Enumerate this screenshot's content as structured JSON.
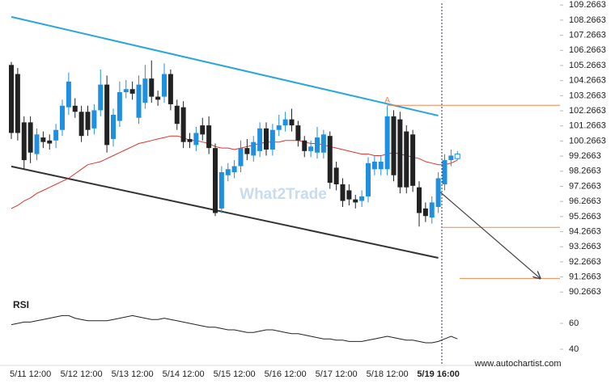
{
  "chart_data": {
    "type": "candlestick",
    "categories": [
      null,
      null,
      null,
      "5/11 12:00",
      null,
      null,
      null,
      null,
      null,
      null,
      null,
      "5/12 12:00",
      null,
      null,
      null,
      null,
      null,
      null,
      null,
      "5/13 12:00",
      null,
      null,
      null,
      null,
      null,
      null,
      null,
      "5/14 12:00",
      null,
      null,
      null,
      null,
      null,
      null,
      null,
      "5/15 12:00",
      null,
      null,
      null,
      null,
      null,
      null,
      null,
      "5/16 12:00",
      null,
      null,
      null,
      null,
      null,
      null,
      null,
      "5/17 12:00",
      null,
      null,
      null,
      null,
      null,
      null,
      null,
      "5/18 12:00",
      null,
      null,
      null,
      null,
      null,
      null,
      null,
      "5/19 16:00",
      null,
      null,
      null
    ],
    "open": [
      105.3,
      104.7,
      101.5,
      101.5,
      99.4,
      100.5,
      100.3,
      100.3,
      101.0,
      102.5,
      102.6,
      102.2,
      102.2,
      101.1,
      102.3,
      104.0,
      100.4,
      101.6,
      103.5,
      103.7,
      101.8,
      102.8,
      104.4,
      103.2,
      103.2,
      104.7,
      102.6,
      102.5,
      100.4,
      100.0,
      101.3,
      101.3,
      99.8,
      95.8,
      98.0,
      98.2,
      98.6,
      99.8,
      99.3,
      99.6,
      101.1,
      99.7,
      101.0,
      101.3,
      101.7,
      101.3,
      100.3,
      99.6,
      99.5,
      99.5,
      100.6,
      98.5,
      97.4,
      97.0,
      96.4,
      96.3,
      96.6,
      98.4,
      98.4,
      98.4,
      101.9,
      101.7,
      100.9,
      100.7,
      97.2,
      95.8,
      95.2,
      95.9,
      97.4,
      99.0,
      99.1
    ],
    "high": [
      105.5,
      105.1,
      101.9,
      101.9,
      101.1,
      100.9,
      100.7,
      101.4,
      103.0,
      104.8,
      103.1,
      102.6,
      102.6,
      102.7,
      105.0,
      104.6,
      102.4,
      104.2,
      104.3,
      104.2,
      104.6,
      105.3,
      105.6,
      103.6,
      105.4,
      105.0,
      103.0,
      102.9,
      100.8,
      101.2,
      101.8,
      101.9,
      100.1,
      98.6,
      98.8,
      99.0,
      100.3,
      100.4,
      100.6,
      101.5,
      101.5,
      101.4,
      102.0,
      102.2,
      102.4,
      101.6,
      100.6,
      100.3,
      101.2,
      101.0,
      100.9,
      98.9,
      97.8,
      97.4,
      96.7,
      97.0,
      99.2,
      99.3,
      99.3,
      102.6,
      102.3,
      102.2,
      101.3,
      101.0,
      97.6,
      96.2,
      96.6,
      98.2,
      99.4,
      99.7,
      99.6
    ],
    "low": [
      100.4,
      100.3,
      98.4,
      98.8,
      99.0,
      99.8,
      99.7,
      99.8,
      100.6,
      102.0,
      101.8,
      100.2,
      100.6,
      100.7,
      101.9,
      99.5,
      99.9,
      101.2,
      103.1,
      103.0,
      101.4,
      102.4,
      102.8,
      102.6,
      102.8,
      102.3,
      101.0,
      99.8,
      99.8,
      99.6,
      100.3,
      99.4,
      95.3,
      95.5,
      97.6,
      97.8,
      98.2,
      99.0,
      98.9,
      99.2,
      99.3,
      99.3,
      100.6,
      100.9,
      100.9,
      99.9,
      99.2,
      99.2,
      99.1,
      99.1,
      97.1,
      97.0,
      95.9,
      96.0,
      95.8,
      95.9,
      96.2,
      98.0,
      98.0,
      98.0,
      97.6,
      96.8,
      96.8,
      96.9,
      94.6,
      94.9,
      94.8,
      95.5,
      97.0,
      98.6,
      99.0
    ],
    "close": [
      100.8,
      100.8,
      99.0,
      99.5,
      100.7,
      100.2,
      100.1,
      101.0,
      102.6,
      104.2,
      102.2,
      100.6,
      101.0,
      102.3,
      104.0,
      100.0,
      102.0,
      103.5,
      103.7,
      103.4,
      104.0,
      104.4,
      103.2,
      103.0,
      104.7,
      102.7,
      101.4,
      100.2,
      100.2,
      100.8,
      100.7,
      99.8,
      95.5,
      98.2,
      98.4,
      98.6,
      99.8,
      99.4,
      100.2,
      101.1,
      99.7,
      101.0,
      101.3,
      101.7,
      101.3,
      100.3,
      99.6,
      99.9,
      100.5,
      100.7,
      97.5,
      97.4,
      96.3,
      96.4,
      96.2,
      96.6,
      98.8,
      98.9,
      98.9,
      101.9,
      98.0,
      97.2,
      97.2,
      97.3,
      95.5,
      95.3,
      96.2,
      97.8,
      99.0,
      99.3,
      99.4
    ],
    "up_color": "#1f8fe0",
    "down_color": "#222222",
    "ma": {
      "color": "#e3302b",
      "values": [
        95.8,
        96.0,
        96.3,
        96.5,
        96.8,
        97.0,
        97.2,
        97.4,
        97.6,
        97.8,
        98.1,
        98.4,
        98.7,
        98.8,
        98.9,
        99.1,
        99.3,
        99.5,
        99.7,
        99.9,
        100.1,
        100.2,
        100.3,
        100.4,
        100.5,
        100.6,
        100.6,
        100.5,
        100.3,
        100.3,
        100.2,
        100.1,
        99.9,
        99.8,
        99.8,
        99.7,
        99.8,
        99.9,
        100.0,
        100.1,
        100.2,
        100.2,
        100.2,
        100.3,
        100.3,
        100.3,
        100.2,
        100.1,
        100.1,
        100.0,
        99.9,
        99.8,
        99.7,
        99.6,
        99.5,
        99.4,
        99.4,
        99.3,
        99.3,
        99.4,
        99.5,
        99.4,
        99.3,
        99.2,
        99.1,
        98.9,
        98.8,
        98.7,
        98.7,
        98.8,
        99.0
      ]
    },
    "ylim": [
      89.8,
      109.6
    ],
    "yticks": [
      109.2663,
      108.2663,
      107.2663,
      106.2663,
      105.2663,
      104.2663,
      103.2663,
      102.2663,
      101.2663,
      100.2663,
      99.2663,
      98.2663,
      97.2663,
      96.2663,
      95.2663,
      94.2663,
      93.2663,
      92.2663,
      91.2663,
      90.2663
    ],
    "channel": [
      {
        "color": "#2aa6df",
        "x": [
          0,
          67
        ],
        "values": [
          108.48,
          101.95
        ]
      },
      {
        "color": "#333333",
        "x": [
          0,
          67
        ],
        "values": [
          98.58,
          92.53
        ]
      }
    ],
    "levels": [
      102.63,
      94.55,
      91.17
    ],
    "level_color": "#f0874e",
    "pattern_label": "A",
    "forecast": {
      "x": [
        67,
        83
      ],
      "values": [
        97.0,
        91.17
      ]
    },
    "rsi": {
      "label": "RSI",
      "color": "#222222",
      "ylim": [
        27.5,
        77.5
      ],
      "yticks": [
        60,
        40
      ],
      "values": [
        59,
        60,
        61,
        61,
        62,
        63,
        64,
        65,
        66,
        66,
        64,
        63,
        62,
        62,
        62,
        62,
        63,
        64,
        65,
        66,
        65,
        64,
        63,
        63,
        64,
        63,
        62,
        61,
        60,
        59,
        58,
        57,
        57,
        56,
        55,
        55,
        54,
        53,
        53,
        54,
        55,
        55,
        54,
        53,
        52,
        52,
        51,
        50,
        49,
        48,
        48,
        47,
        47,
        46,
        46,
        46,
        47,
        48,
        49,
        50,
        49,
        48,
        47,
        47,
        46,
        45,
        45,
        46,
        48,
        50,
        48
      ]
    },
    "watermark": "What2Trade",
    "source": "www.autochartist.com"
  }
}
